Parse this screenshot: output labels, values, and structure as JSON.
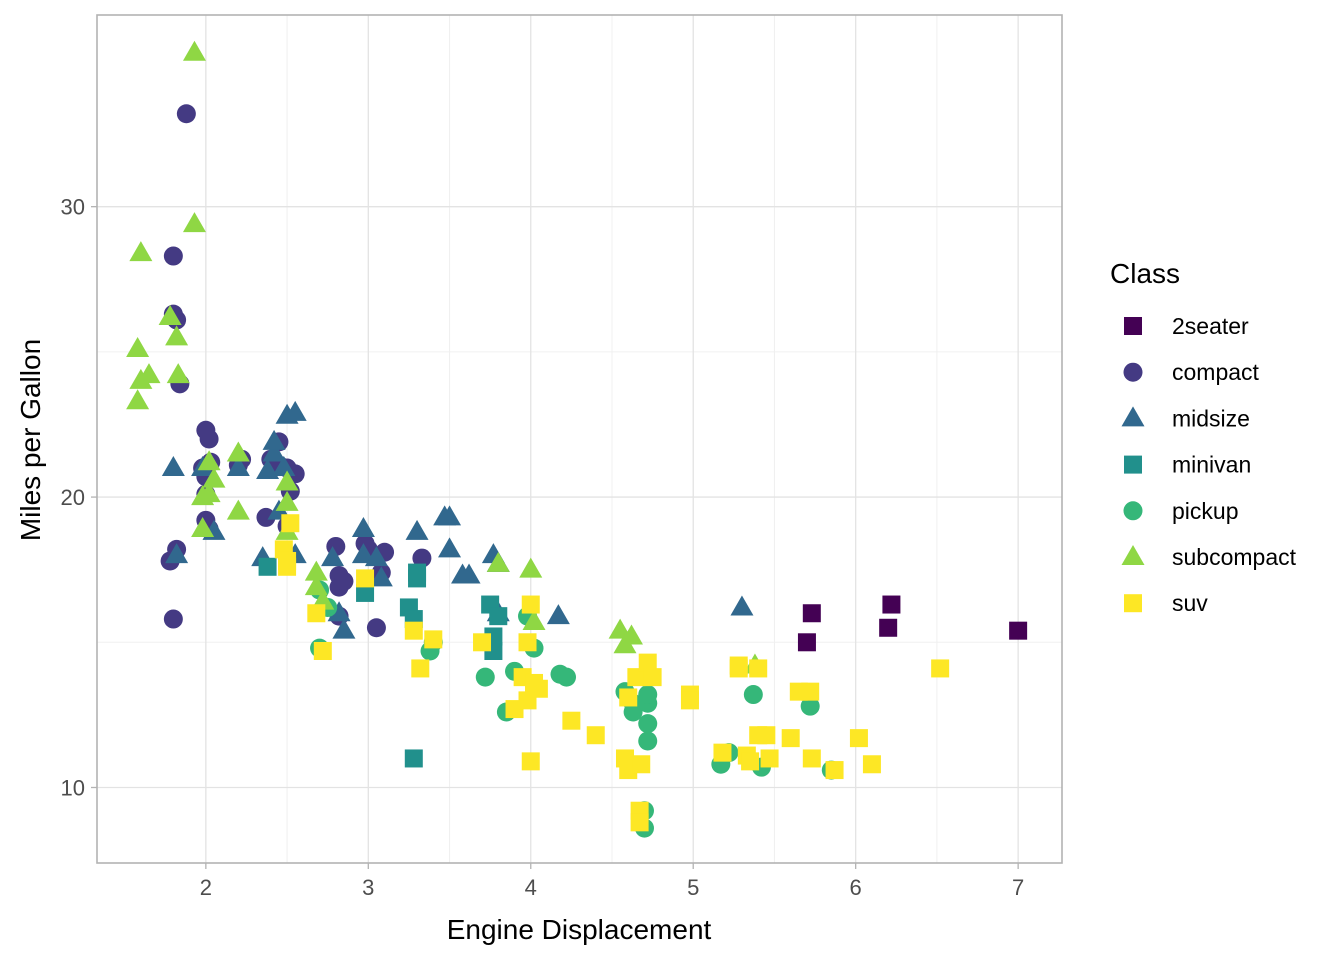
{
  "chart_data": {
    "type": "scatter",
    "title": "",
    "xlabel": "Engine Displacement",
    "ylabel": "Miles per Gallon",
    "xlim": [
      1.33,
      7.27
    ],
    "ylim": [
      7.4,
      36.6
    ],
    "x_ticks": [
      2,
      3,
      4,
      5,
      6,
      7
    ],
    "x_tick_labels": [
      "2",
      "3",
      "4",
      "5",
      "6",
      "7"
    ],
    "y_ticks": [
      10,
      20,
      30
    ],
    "y_tick_labels": [
      "10",
      "20",
      "30"
    ],
    "grid": true,
    "legend": {
      "title": "Class",
      "position": "right",
      "entries": [
        {
          "name": "2seater",
          "shape": "square",
          "color": "#440154"
        },
        {
          "name": "compact",
          "shape": "circle",
          "color": "#443A83"
        },
        {
          "name": "midsize",
          "shape": "triangle",
          "color": "#31688E"
        },
        {
          "name": "minivan",
          "shape": "square",
          "color": "#21908C"
        },
        {
          "name": "pickup",
          "shape": "circle",
          "color": "#35B779"
        },
        {
          "name": "subcompact",
          "shape": "triangle",
          "color": "#8FD744"
        },
        {
          "name": "suv",
          "shape": "square",
          "color": "#FDE725"
        }
      ]
    },
    "series": [
      {
        "name": "2seater",
        "points": [
          [
            5.7,
            15
          ],
          [
            5.73,
            16
          ],
          [
            6.2,
            15.5
          ],
          [
            6.22,
            16.3
          ],
          [
            7.0,
            15.4
          ]
        ]
      },
      {
        "name": "compact",
        "points": [
          [
            1.8,
            28.3
          ],
          [
            1.8,
            26.3
          ],
          [
            1.82,
            26.1
          ],
          [
            1.84,
            23.9
          ],
          [
            1.88,
            33.2
          ],
          [
            1.8,
            15.8
          ],
          [
            1.78,
            17.8
          ],
          [
            1.82,
            18.2
          ],
          [
            2.0,
            22.3
          ],
          [
            2.02,
            22
          ],
          [
            1.98,
            21
          ],
          [
            2.03,
            21.2
          ],
          [
            2.0,
            20.7
          ],
          [
            2.0,
            20.1
          ],
          [
            2.0,
            19.2
          ],
          [
            2.02,
            18.9
          ],
          [
            2.2,
            21.1
          ],
          [
            2.22,
            21.3
          ],
          [
            2.37,
            19.3
          ],
          [
            2.4,
            21.3
          ],
          [
            2.45,
            21.9
          ],
          [
            2.45,
            21.1
          ],
          [
            2.5,
            19
          ],
          [
            2.5,
            21
          ],
          [
            2.52,
            20.2
          ],
          [
            2.55,
            20.8
          ],
          [
            2.8,
            18.3
          ],
          [
            2.82,
            17.3
          ],
          [
            2.82,
            16.9
          ],
          [
            2.85,
            17.1
          ],
          [
            2.82,
            15.9
          ],
          [
            2.98,
            18.4
          ],
          [
            3.0,
            18.2
          ],
          [
            3.05,
            15.5
          ],
          [
            3.08,
            17.4
          ],
          [
            3.1,
            18.1
          ],
          [
            3.33,
            17.9
          ]
        ]
      },
      {
        "name": "midsize",
        "points": [
          [
            1.8,
            21
          ],
          [
            1.82,
            18
          ],
          [
            1.98,
            21
          ],
          [
            2.05,
            18.8
          ],
          [
            2.2,
            21
          ],
          [
            2.35,
            17.9
          ],
          [
            2.38,
            20.9
          ],
          [
            2.42,
            21.5
          ],
          [
            2.42,
            21.9
          ],
          [
            2.45,
            19.5
          ],
          [
            2.48,
            21
          ],
          [
            2.5,
            22.8
          ],
          [
            2.55,
            22.9
          ],
          [
            2.55,
            18
          ],
          [
            2.78,
            17.9
          ],
          [
            2.82,
            16
          ],
          [
            2.85,
            15.4
          ],
          [
            2.97,
            18
          ],
          [
            2.97,
            18.9
          ],
          [
            3.05,
            17.9
          ],
          [
            3.08,
            17.2
          ],
          [
            3.3,
            18.8
          ],
          [
            3.47,
            19.3
          ],
          [
            3.5,
            19.3
          ],
          [
            3.5,
            18.2
          ],
          [
            3.58,
            17.3
          ],
          [
            3.62,
            17.3
          ],
          [
            3.77,
            18
          ],
          [
            3.8,
            16
          ],
          [
            3.8,
            17.7
          ],
          [
            4.17,
            15.9
          ],
          [
            5.3,
            16.2
          ]
        ]
      },
      {
        "name": "minivan",
        "points": [
          [
            2.38,
            17.6
          ],
          [
            2.98,
            16.7
          ],
          [
            3.25,
            16.2
          ],
          [
            3.28,
            15.8
          ],
          [
            3.28,
            11
          ],
          [
            3.3,
            17.2
          ],
          [
            3.3,
            17.4
          ],
          [
            3.75,
            16.3
          ],
          [
            3.77,
            15.2
          ],
          [
            3.77,
            14.7
          ],
          [
            3.8,
            15.9
          ]
        ]
      },
      {
        "name": "pickup",
        "points": [
          [
            2.7,
            14.8
          ],
          [
            2.7,
            16.8
          ],
          [
            2.75,
            16.2
          ],
          [
            3.38,
            14.7
          ],
          [
            3.4,
            15
          ],
          [
            3.72,
            13.8
          ],
          [
            3.85,
            12.6
          ],
          [
            3.9,
            14
          ],
          [
            3.98,
            15.9
          ],
          [
            4.02,
            14.8
          ],
          [
            4.18,
            13.9
          ],
          [
            4.22,
            13.8
          ],
          [
            4.58,
            13.3
          ],
          [
            4.63,
            12.9
          ],
          [
            4.63,
            12.6
          ],
          [
            4.7,
            9.2
          ],
          [
            4.7,
            8.6
          ],
          [
            4.72,
            11.6
          ],
          [
            4.72,
            12.2
          ],
          [
            4.72,
            12.9
          ],
          [
            4.72,
            13.2
          ],
          [
            5.17,
            10.8
          ],
          [
            5.22,
            11.2
          ],
          [
            5.37,
            13.2
          ],
          [
            5.42,
            10.7
          ],
          [
            5.72,
            12.8
          ],
          [
            5.85,
            10.6
          ]
        ]
      },
      {
        "name": "subcompact",
        "points": [
          [
            1.6,
            28.4
          ],
          [
            1.58,
            25.1
          ],
          [
            1.6,
            24
          ],
          [
            1.65,
            24.2
          ],
          [
            1.58,
            23.3
          ],
          [
            1.78,
            26.2
          ],
          [
            1.82,
            25.5
          ],
          [
            1.83,
            24.2
          ],
          [
            1.93,
            35.3
          ],
          [
            1.93,
            29.4
          ],
          [
            1.98,
            20
          ],
          [
            1.98,
            18.9
          ],
          [
            2.02,
            21.2
          ],
          [
            2.05,
            20.6
          ],
          [
            2.02,
            20.1
          ],
          [
            2.2,
            21.5
          ],
          [
            2.2,
            19.5
          ],
          [
            2.5,
            20.5
          ],
          [
            2.5,
            19.8
          ],
          [
            2.5,
            18.8
          ],
          [
            2.68,
            17.4
          ],
          [
            2.68,
            16.9
          ],
          [
            2.72,
            16.4
          ],
          [
            3.8,
            17.7
          ],
          [
            4.0,
            17.5
          ],
          [
            4.02,
            15.7
          ],
          [
            4.55,
            15.4
          ],
          [
            4.58,
            14.9
          ],
          [
            4.62,
            15.2
          ],
          [
            5.38,
            14.2
          ]
        ]
      },
      {
        "name": "suv",
        "points": [
          [
            2.48,
            18.2
          ],
          [
            2.5,
            17.6
          ],
          [
            2.5,
            17.8
          ],
          [
            2.52,
            19.1
          ],
          [
            2.68,
            16
          ],
          [
            2.72,
            14.7
          ],
          [
            2.98,
            17.2
          ],
          [
            3.28,
            15.4
          ],
          [
            3.32,
            14.1
          ],
          [
            3.4,
            15.1
          ],
          [
            3.7,
            15
          ],
          [
            3.9,
            12.7
          ],
          [
            3.95,
            13.8
          ],
          [
            3.98,
            15
          ],
          [
            3.98,
            13
          ],
          [
            4.0,
            16.3
          ],
          [
            4.0,
            10.9
          ],
          [
            4.02,
            13.6
          ],
          [
            4.05,
            13.4
          ],
          [
            4.25,
            12.3
          ],
          [
            4.4,
            11.8
          ],
          [
            4.58,
            11
          ],
          [
            4.6,
            13.1
          ],
          [
            4.6,
            10.6
          ],
          [
            4.65,
            13.8
          ],
          [
            4.67,
            9.2
          ],
          [
            4.67,
            8.8
          ],
          [
            4.68,
            10.8
          ],
          [
            4.72,
            14.3
          ],
          [
            4.75,
            13.8
          ],
          [
            4.98,
            13.2
          ],
          [
            4.98,
            13
          ],
          [
            5.18,
            11.2
          ],
          [
            5.28,
            14.1
          ],
          [
            5.28,
            14.2
          ],
          [
            5.33,
            11.1
          ],
          [
            5.35,
            10.9
          ],
          [
            5.4,
            14.1
          ],
          [
            5.4,
            11.8
          ],
          [
            5.45,
            11.8
          ],
          [
            5.47,
            11
          ],
          [
            5.6,
            11.7
          ],
          [
            5.65,
            13.3
          ],
          [
            5.72,
            13.3
          ],
          [
            5.73,
            11
          ],
          [
            5.87,
            10.6
          ],
          [
            6.02,
            11.7
          ],
          [
            6.1,
            10.8
          ],
          [
            6.52,
            14.1
          ]
        ]
      }
    ]
  }
}
